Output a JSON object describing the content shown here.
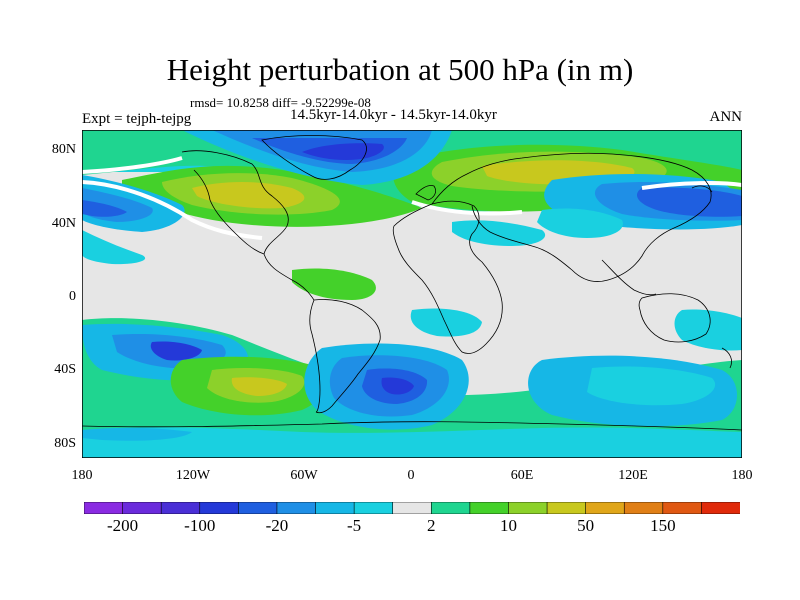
{
  "header": {
    "title": "Height perturbation at 500 hPa (in m)",
    "stats": "rmsd= 10.8258 diff= -9.52299e-08",
    "period": "14.5kyr-14.0kyr - 14.5kyr-14.0kyr",
    "experiment": "Expt = tejph-tejpg",
    "season": "ANN"
  },
  "axes": {
    "lat_ticks": [
      "80N",
      "40N",
      "0",
      "40S",
      "80S"
    ],
    "lon_ticks": [
      "180",
      "120W",
      "60W",
      "0",
      "60E",
      "120E",
      "180"
    ]
  },
  "colorbar": {
    "colors": [
      "#8a2be2",
      "#6b2bdc",
      "#4a2fd6",
      "#2439d8",
      "#1f5fe0",
      "#1f8fe6",
      "#16b7e6",
      "#1ad0e0",
      "#e6e6e6",
      "#1fd590",
      "#44d12a",
      "#8cd12a",
      "#c8c81e",
      "#e0a61a",
      "#e07f16",
      "#e05812",
      "#e02a0a"
    ],
    "labels": [
      "-200",
      "-100",
      "-20",
      "-5",
      "2",
      "10",
      "50",
      "150"
    ]
  },
  "colors": {
    "background_field": "#e6e6e6",
    "coastline": "#000000"
  }
}
